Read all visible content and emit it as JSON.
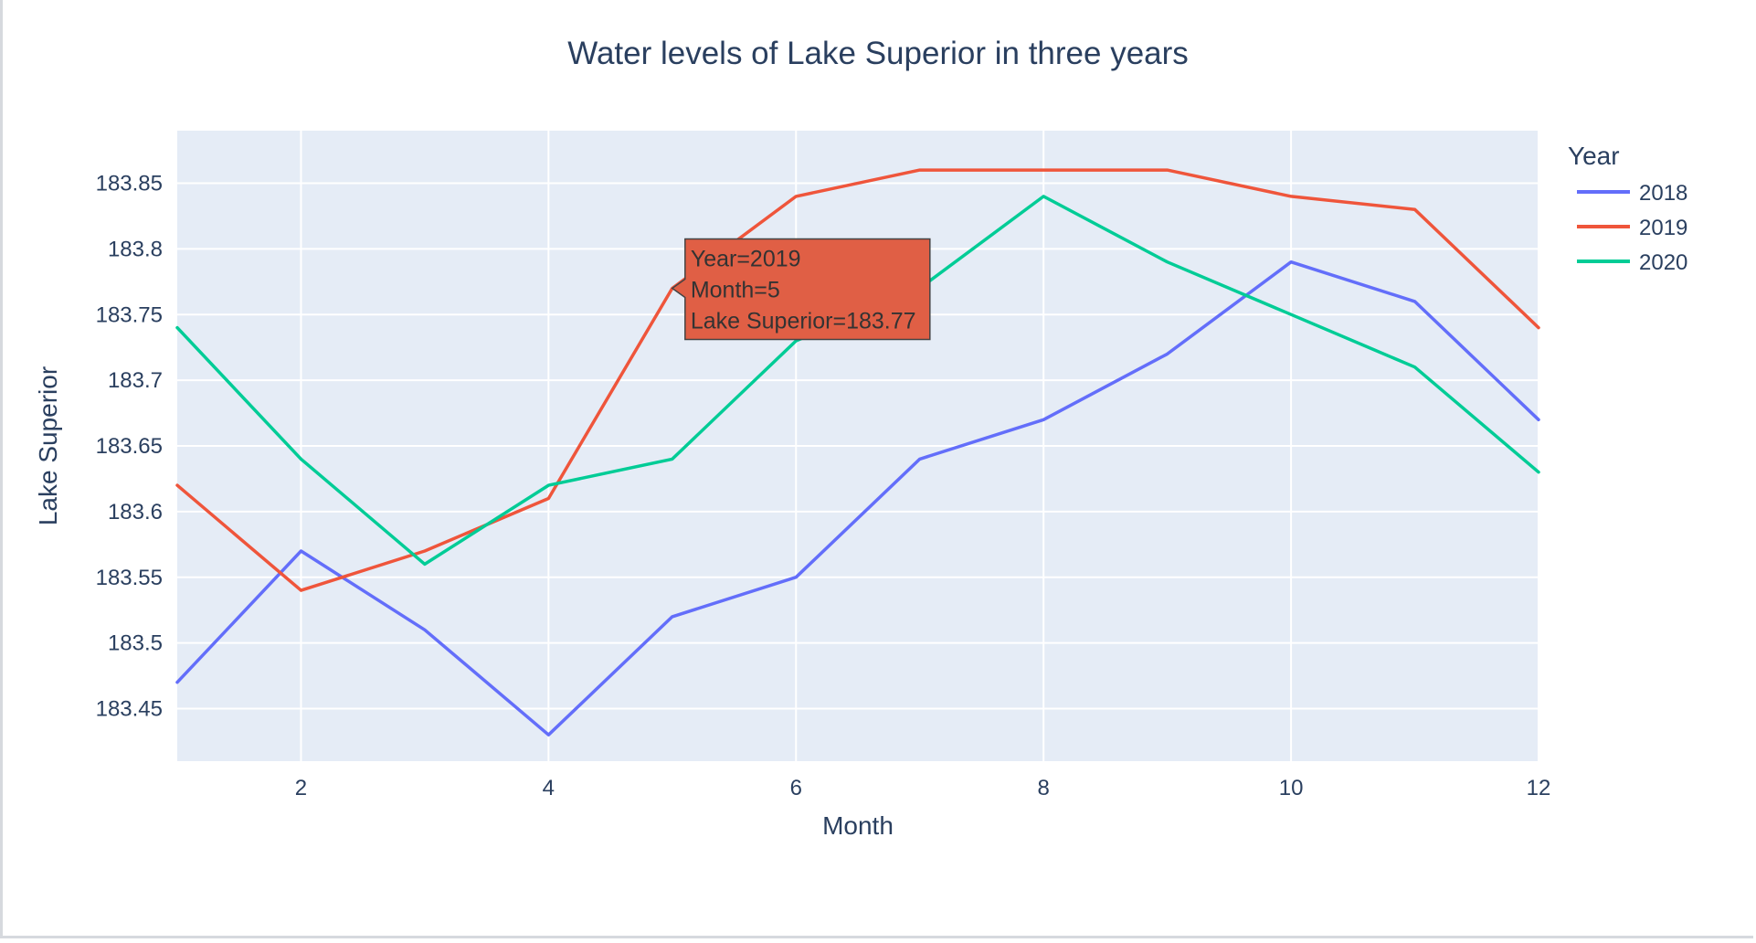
{
  "chart_data": {
    "type": "line",
    "title": "Water levels of Lake Superior in three years",
    "xlabel": "Month",
    "ylabel": "Lake Superior",
    "xlim": [
      1,
      12
    ],
    "ylim": [
      183.41,
      183.89
    ],
    "x_ticks": [
      2,
      4,
      6,
      8,
      10,
      12
    ],
    "y_ticks": [
      183.45,
      183.5,
      183.55,
      183.6,
      183.65,
      183.7,
      183.75,
      183.8,
      183.85
    ],
    "grid": true,
    "legend_title": "Year",
    "legend_position": "top-right",
    "x": [
      1,
      2,
      3,
      4,
      5,
      6,
      7,
      8,
      9,
      10,
      11,
      12
    ],
    "series": [
      {
        "name": "2018",
        "color": "#636efa",
        "values": [
          183.47,
          183.57,
          183.51,
          183.43,
          183.52,
          183.55,
          183.64,
          183.67,
          183.72,
          183.79,
          183.76,
          183.67
        ]
      },
      {
        "name": "2019",
        "color": "#ef553b",
        "values": [
          183.62,
          183.54,
          183.57,
          183.61,
          183.77,
          183.84,
          183.86,
          183.86,
          183.86,
          183.84,
          183.83,
          183.74
        ]
      },
      {
        "name": "2020",
        "color": "#00cc96",
        "values": [
          183.74,
          183.64,
          183.56,
          183.62,
          183.64,
          183.73,
          183.77,
          183.84,
          183.79,
          183.75,
          183.71,
          183.63
        ]
      }
    ],
    "tooltip": {
      "lines": [
        "Year=2019",
        "Month=5",
        "Lake Superior=183.77"
      ],
      "series_index": 1,
      "point_index": 4,
      "color": "#e05f45"
    }
  }
}
